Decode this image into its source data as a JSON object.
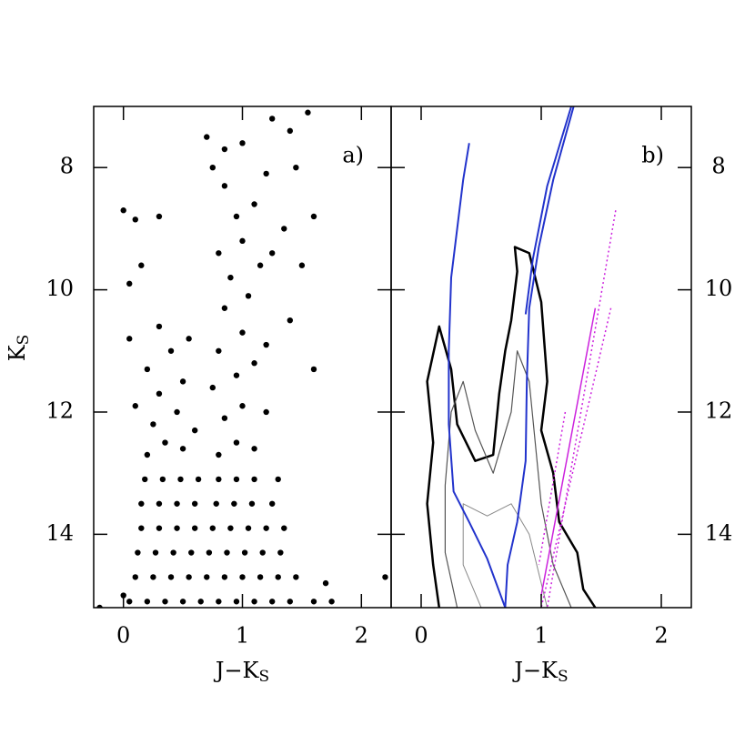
{
  "chart_data": [
    {
      "type": "scatter",
      "panel_label": "a)",
      "x_label": {
        "main": "J−K",
        "sub": "S"
      },
      "y_label": {
        "main": "K",
        "sub": "S"
      },
      "xlim": [
        -0.25,
        2.25
      ],
      "ylim": [
        15.2,
        7
      ],
      "xticks": [
        0,
        1,
        2
      ],
      "yticks": [
        8,
        10,
        12,
        14
      ],
      "ytick_side": "left",
      "series": [
        {
          "color": "#000000",
          "x": [
            0.05,
            0.2,
            0.35,
            0.5,
            0.65,
            0.8,
            0.95,
            1.1,
            1.25,
            1.4,
            1.6,
            0.1,
            0.25,
            0.4,
            0.55,
            0.7,
            0.85,
            1.0,
            1.15,
            1.3,
            1.45,
            0.12,
            0.27,
            0.42,
            0.57,
            0.72,
            0.87,
            1.02,
            1.17,
            1.32,
            0.15,
            0.3,
            0.45,
            0.6,
            0.75,
            0.9,
            1.05,
            1.2,
            1.35,
            0.15,
            0.3,
            0.45,
            0.6,
            0.78,
            0.93,
            1.08,
            1.25,
            0.18,
            0.33,
            0.48,
            0.63,
            0.8,
            0.95,
            1.1,
            1.3,
            0.2,
            0.35,
            0.5,
            0.25,
            0.45,
            0.6,
            0.3,
            0.5,
            0.2,
            0.4,
            0.55,
            0.3,
            0.1,
            0.05,
            0.8,
            0.95,
            1.1,
            0.85,
            1.0,
            1.2,
            0.75,
            0.95,
            1.1,
            0.8,
            1.0,
            1.2,
            0.85,
            1.05,
            0.9,
            1.15,
            0.8,
            1.0,
            1.25,
            0.95,
            1.1,
            0.85,
            0.7,
            0.85,
            1.0,
            1.25,
            1.4,
            1.55,
            1.45,
            1.2,
            0.75,
            1.6,
            1.35,
            0.0,
            0.1,
            0.3,
            0.15,
            0.05,
            1.5,
            1.4,
            1.6,
            1.7,
            1.75,
            -0.2,
            2.2,
            0.0
          ],
          "y": [
            15.1,
            15.1,
            15.1,
            15.1,
            15.1,
            15.1,
            15.1,
            15.1,
            15.1,
            15.1,
            15.1,
            14.7,
            14.7,
            14.7,
            14.7,
            14.7,
            14.7,
            14.7,
            14.7,
            14.7,
            14.7,
            14.3,
            14.3,
            14.3,
            14.3,
            14.3,
            14.3,
            14.3,
            14.3,
            14.3,
            13.9,
            13.9,
            13.9,
            13.9,
            13.9,
            13.9,
            13.9,
            13.9,
            13.9,
            13.5,
            13.5,
            13.5,
            13.5,
            13.5,
            13.5,
            13.5,
            13.5,
            13.1,
            13.1,
            13.1,
            13.1,
            13.1,
            13.1,
            13.1,
            13.1,
            12.7,
            12.5,
            12.6,
            12.2,
            12.0,
            12.3,
            11.7,
            11.5,
            11.3,
            11.0,
            10.8,
            10.6,
            11.9,
            10.8,
            12.7,
            12.5,
            12.6,
            12.1,
            11.9,
            12.0,
            11.6,
            11.4,
            11.2,
            11.0,
            10.7,
            10.9,
            10.3,
            10.1,
            9.8,
            9.6,
            9.4,
            9.2,
            9.4,
            8.8,
            8.6,
            8.3,
            7.5,
            7.7,
            7.6,
            7.2,
            7.4,
            7.1,
            8.0,
            8.1,
            8.0,
            8.8,
            9.0,
            8.7,
            8.85,
            8.8,
            9.6,
            9.9,
            9.6,
            10.5,
            11.3,
            14.8,
            15.1,
            15.2,
            14.7,
            15.0
          ]
        }
      ]
    },
    {
      "type": "line",
      "panel_label": "b)",
      "x_label": {
        "main": "J−K",
        "sub": "S"
      },
      "xlim": [
        -0.25,
        2.25
      ],
      "ylim": [
        15.2,
        7
      ],
      "xticks": [
        0,
        1,
        2
      ],
      "yticks": [
        8,
        10,
        12,
        14
      ],
      "ytick_side": "right",
      "series": [
        {
          "color": "#000000",
          "width": 2.5,
          "dash": "none",
          "x": [
            0.15,
            0.1,
            0.05,
            0.1,
            0.05,
            0.15,
            0.25,
            0.3,
            0.45,
            0.6,
            0.65,
            0.7,
            0.75,
            0.8,
            0.78,
            0.9,
            1.0,
            1.05,
            1.0,
            1.1,
            1.15,
            1.3,
            1.35,
            1.45
          ],
          "y": [
            15.2,
            14.5,
            13.5,
            12.5,
            11.5,
            10.6,
            11.3,
            12.2,
            12.8,
            12.7,
            11.7,
            11.0,
            10.5,
            9.7,
            9.3,
            9.4,
            10.2,
            11.5,
            12.3,
            13.0,
            13.8,
            14.3,
            14.9,
            15.2
          ]
        },
        {
          "color": "#555555",
          "width": 1.2,
          "dash": "none",
          "x": [
            0.3,
            0.2,
            0.2,
            0.25,
            0.35,
            0.45,
            0.6,
            0.75,
            0.8,
            0.9,
            0.95,
            1.0,
            1.1,
            1.25
          ],
          "y": [
            15.2,
            14.3,
            13.2,
            12.0,
            11.5,
            12.3,
            13.0,
            12.0,
            11.0,
            11.5,
            12.5,
            13.5,
            14.5,
            15.2
          ]
        },
        {
          "color": "#888888",
          "width": 1,
          "dash": "none",
          "x": [
            0.5,
            0.35,
            0.35,
            0.55,
            0.75,
            0.9,
            1.0,
            1.05
          ],
          "y": [
            15.2,
            14.5,
            13.5,
            13.7,
            13.5,
            14.0,
            14.8,
            15.2
          ]
        },
        {
          "color": "#2233cc",
          "width": 2,
          "dash": "none",
          "x": [
            0.4,
            0.35,
            0.3,
            0.25,
            0.23,
            0.23,
            0.27,
            0.4,
            0.55,
            0.7
          ],
          "y": [
            7.6,
            8.2,
            9.0,
            9.8,
            11.0,
            12.2,
            13.3,
            13.8,
            14.4,
            15.2
          ]
        },
        {
          "color": "#2233cc",
          "width": 2,
          "dash": "none",
          "x": [
            1.27,
            1.1,
            0.98,
            0.9,
            0.88,
            0.87,
            0.8,
            0.72,
            0.7
          ],
          "y": [
            7.0,
            8.2,
            9.3,
            10.3,
            11.5,
            12.8,
            13.8,
            14.5,
            15.2
          ]
        },
        {
          "color": "#2233cc",
          "width": 2,
          "dash": "none",
          "x": [
            1.25,
            1.05,
            0.93,
            0.87
          ],
          "y": [
            7.0,
            8.3,
            9.5,
            10.4
          ]
        },
        {
          "color": "#cc22dd",
          "width": 1.5,
          "dash": "2 3",
          "x": [
            1.62,
            1.05
          ],
          "y": [
            8.7,
            15.2
          ]
        },
        {
          "color": "#cc22dd",
          "width": 1.5,
          "dash": "2 3",
          "x": [
            1.58,
            1.0
          ],
          "y": [
            10.3,
            15.2
          ]
        },
        {
          "color": "#cc22dd",
          "width": 1.5,
          "dash": "none",
          "x": [
            1.45,
            1.0
          ],
          "y": [
            10.3,
            15.0
          ]
        },
        {
          "color": "#cc22dd",
          "width": 1.5,
          "dash": "2 3",
          "x": [
            1.2,
            0.98
          ],
          "y": [
            12.0,
            14.5
          ]
        }
      ]
    }
  ]
}
